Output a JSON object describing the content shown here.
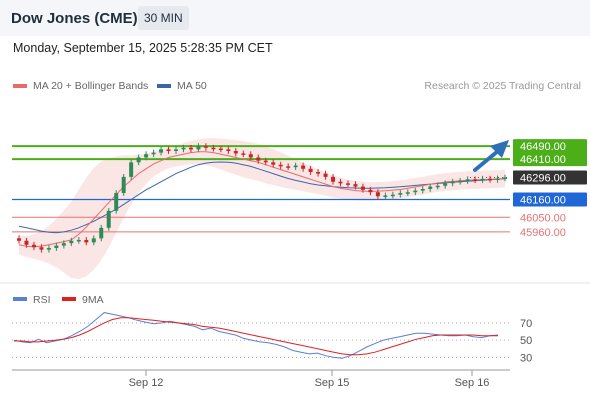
{
  "header": {
    "instrument": "Dow Jones (CME)",
    "timeframe": "30 MIN"
  },
  "timestamp": "Monday, September 15, 2025 5:28:35 PM CET",
  "legend": {
    "ma20": "MA 20 + Bollinger Bands",
    "ma50": "MA 50"
  },
  "source": "Research © 2025 Trading Central",
  "colors": {
    "up": "#2e8b57",
    "down": "#c62828",
    "ma20": "#e86a6a",
    "ma50": "#3a66a8",
    "resistance": "#4caf1a",
    "pivot": "#1f66d6",
    "support": "#e57373",
    "rsi": "#5b7fd6",
    "rsi_ma": "#dd2222"
  },
  "chart_data": [
    {
      "type": "candlestick",
      "x_ticks": [
        "Sep 12",
        "Sep 15",
        "Sep 16"
      ],
      "ylim": [
        45650,
        46800
      ],
      "levels": [
        {
          "label": "46490.00",
          "value": 46490,
          "kind": "resistance"
        },
        {
          "label": "46410.00",
          "value": 46410,
          "kind": "resistance"
        },
        {
          "label": "46296.00",
          "value": 46296,
          "kind": "current"
        },
        {
          "label": "46160.00",
          "value": 46160,
          "kind": "pivot"
        },
        {
          "label": "46050.00",
          "value": 46050,
          "kind": "support"
        },
        {
          "label": "45960.00",
          "value": 45960,
          "kind": "support"
        }
      ],
      "price_path": [
        45905,
        45880,
        45865,
        45850,
        45860,
        45875,
        45890,
        45905,
        45910,
        45895,
        45920,
        45985,
        46090,
        46200,
        46300,
        46390,
        46420,
        46440,
        46450,
        46470,
        46460,
        46470,
        46480,
        46470,
        46490,
        46480,
        46475,
        46470,
        46460,
        46445,
        46440,
        46420,
        46400,
        46390,
        46375,
        46365,
        46360,
        46370,
        46350,
        46330,
        46320,
        46300,
        46270,
        46260,
        46255,
        46240,
        46220,
        46205,
        46180,
        46185,
        46190,
        46200,
        46205,
        46215,
        46225,
        46240,
        46245,
        46260,
        46270,
        46275,
        46285,
        46280,
        46288,
        46282,
        46290,
        46296
      ],
      "ma20": [
        45880,
        45870,
        45868,
        45872,
        45880,
        45890,
        45900,
        45910,
        45945,
        45990,
        46040,
        46090,
        46140,
        46190,
        46240,
        46280,
        46320,
        46350,
        46380,
        46400,
        46420,
        46430,
        46440,
        46450,
        46455,
        46455,
        46450,
        46440,
        46430,
        46420,
        46410,
        46400,
        46390,
        46375,
        46360,
        46345,
        46330,
        46315,
        46300,
        46285,
        46270,
        46255,
        46240,
        46230,
        46222,
        46215,
        46212,
        46210,
        46212,
        46214,
        46218,
        46222,
        46230,
        46238,
        46246,
        46254,
        46262,
        46268,
        46272,
        46276,
        46279,
        46281,
        46283,
        46285,
        46287,
        46290
      ],
      "ma50": [
        45995,
        45985,
        45975,
        45965,
        45958,
        45955,
        45960,
        45970,
        45985,
        46005,
        46025,
        46050,
        46075,
        46100,
        46130,
        46160,
        46190,
        46220,
        46245,
        46270,
        46295,
        46320,
        46340,
        46360,
        46375,
        46385,
        46390,
        46392,
        46390,
        46385,
        46375,
        46365,
        46350,
        46335,
        46320,
        46305,
        46290,
        46278,
        46268,
        46258,
        46250,
        46245,
        46240,
        46236,
        46233,
        46231,
        46230,
        46230,
        46231,
        46233,
        46236,
        46239,
        46243,
        46247,
        46251,
        46255,
        46259,
        46263,
        46267,
        46270,
        46273,
        46276,
        46279,
        46282,
        46285,
        46288
      ]
    },
    {
      "type": "line",
      "name": "RSI",
      "series_labels": [
        "RSI",
        "9MA"
      ],
      "y_ticks": [
        70,
        50,
        30
      ],
      "ylim": [
        20,
        85
      ],
      "rsi": [
        50,
        48,
        47,
        51,
        47,
        49,
        51,
        55,
        60,
        66,
        74,
        82,
        80,
        78,
        76,
        73,
        71,
        69,
        70,
        72,
        70,
        68,
        66,
        62,
        64,
        60,
        58,
        56,
        52,
        50,
        48,
        47,
        45,
        42,
        38,
        36,
        34,
        35,
        32,
        30,
        29,
        32,
        37,
        42,
        46,
        50,
        52,
        54,
        56,
        58,
        58,
        57,
        56,
        55,
        55,
        56,
        54,
        53,
        55,
        56
      ],
      "rsi_ma": [
        49,
        49,
        48,
        48,
        49,
        50,
        51,
        53,
        56,
        60,
        65,
        70,
        74,
        76,
        76,
        75,
        74,
        73,
        72,
        71,
        70,
        69,
        68,
        66,
        65,
        64,
        62,
        60,
        58,
        56,
        54,
        52,
        50,
        48,
        46,
        44,
        42,
        40,
        38,
        36,
        34,
        33,
        33,
        34,
        36,
        39,
        42,
        45,
        48,
        51,
        53,
        55,
        56,
        56,
        56,
        56,
        56,
        55,
        55,
        55
      ]
    }
  ]
}
